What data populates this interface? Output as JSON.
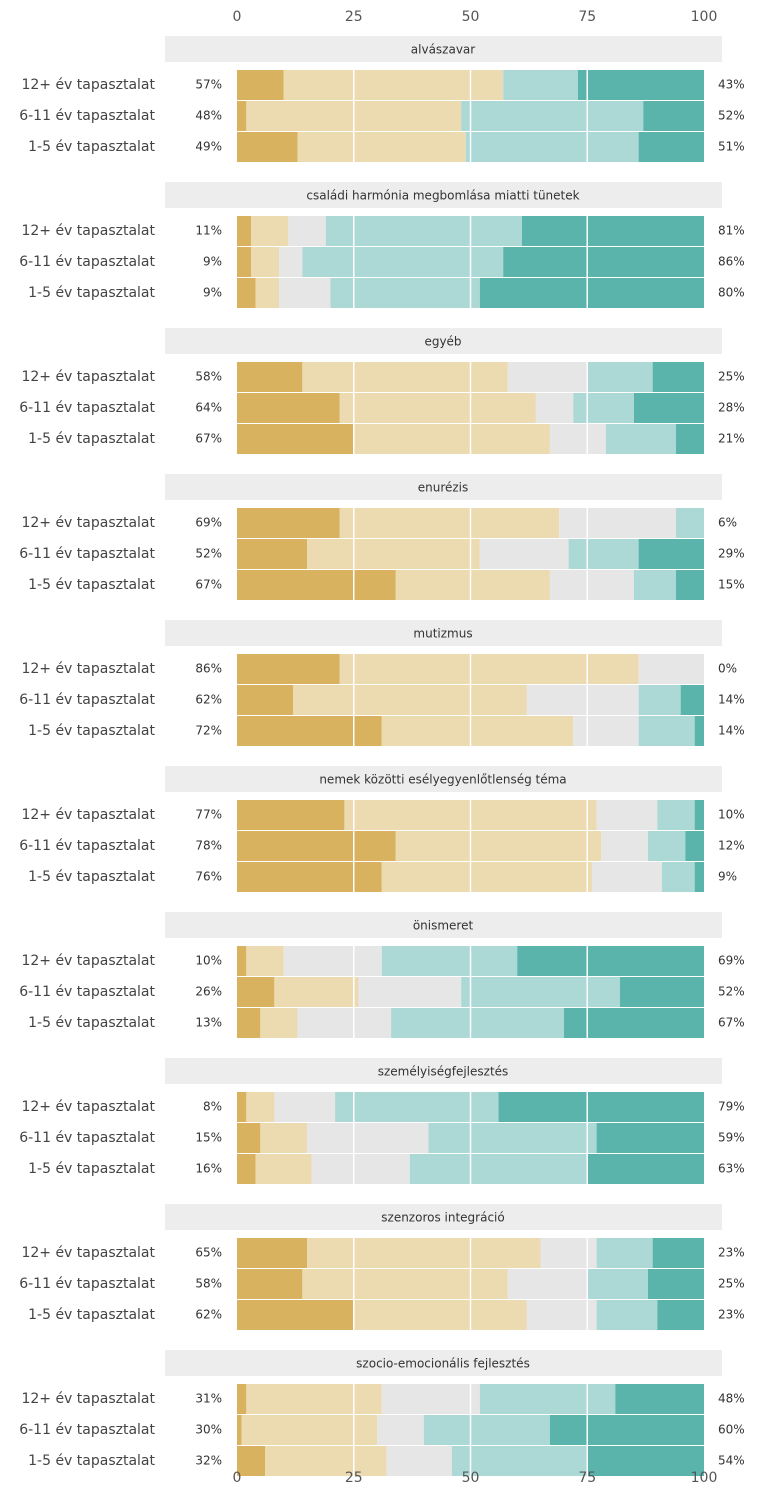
{
  "chart_data": [
    {
      "type": "bar",
      "title": "alvászavar",
      "categories": [
        "12+ év tapasztalat",
        "6-11 év tapasztalat",
        "1-5 év tapasztalat"
      ],
      "xlim": [
        0,
        100
      ],
      "xticks": [
        0,
        25,
        50,
        75,
        100
      ],
      "grid": true,
      "series": [
        {
          "color": "#d9b25f",
          "values": [
            10,
            2,
            13
          ]
        },
        {
          "color": "#ecdab0",
          "values": [
            47,
            46,
            36
          ]
        },
        {
          "color": "#e6e6e6",
          "values": [
            0,
            0,
            0
          ]
        },
        {
          "color": "#acd9d6",
          "values": [
            16,
            39,
            37
          ]
        },
        {
          "color": "#5ab4ac",
          "values": [
            27,
            13,
            14
          ]
        }
      ],
      "left_labels": [
        "57%",
        "48%",
        "49%"
      ],
      "right_labels": [
        "43%",
        "52%",
        "51%"
      ]
    },
    {
      "type": "bar",
      "title": "családi harmónia megbomlása miatti tünetek",
      "categories": [
        "12+ év tapasztalat",
        "6-11 év tapasztalat",
        "1-5 év tapasztalat"
      ],
      "xlim": [
        0,
        100
      ],
      "xticks": [
        0,
        25,
        50,
        75,
        100
      ],
      "grid": true,
      "series": [
        {
          "color": "#d9b25f",
          "values": [
            3,
            3,
            4
          ]
        },
        {
          "color": "#ecdab0",
          "values": [
            8,
            6,
            5
          ]
        },
        {
          "color": "#e6e6e6",
          "values": [
            8,
            5,
            11
          ]
        },
        {
          "color": "#acd9d6",
          "values": [
            42,
            43,
            32
          ]
        },
        {
          "color": "#5ab4ac",
          "values": [
            39,
            43,
            48
          ]
        }
      ],
      "left_labels": [
        "11%",
        "9%",
        "9%"
      ],
      "right_labels": [
        "81%",
        "86%",
        "80%"
      ]
    },
    {
      "type": "bar",
      "title": "egyéb",
      "categories": [
        "12+ év tapasztalat",
        "6-11 év tapasztalat",
        "1-5 év tapasztalat"
      ],
      "xlim": [
        0,
        100
      ],
      "xticks": [
        0,
        25,
        50,
        75,
        100
      ],
      "grid": true,
      "series": [
        {
          "color": "#d9b25f",
          "values": [
            14,
            22,
            25
          ]
        },
        {
          "color": "#ecdab0",
          "values": [
            44,
            42,
            42
          ]
        },
        {
          "color": "#e6e6e6",
          "values": [
            17,
            8,
            12
          ]
        },
        {
          "color": "#acd9d6",
          "values": [
            14,
            13,
            15
          ]
        },
        {
          "color": "#5ab4ac",
          "values": [
            11,
            15,
            6
          ]
        }
      ],
      "left_labels": [
        "58%",
        "64%",
        "67%"
      ],
      "right_labels": [
        "25%",
        "28%",
        "21%"
      ]
    },
    {
      "type": "bar",
      "title": "enurézis",
      "categories": [
        "12+ év tapasztalat",
        "6-11 év tapasztalat",
        "1-5 év tapasztalat"
      ],
      "xlim": [
        0,
        100
      ],
      "xticks": [
        0,
        25,
        50,
        75,
        100
      ],
      "grid": true,
      "series": [
        {
          "color": "#d9b25f",
          "values": [
            22,
            15,
            34
          ]
        },
        {
          "color": "#ecdab0",
          "values": [
            47,
            37,
            33
          ]
        },
        {
          "color": "#e6e6e6",
          "values": [
            25,
            19,
            18
          ]
        },
        {
          "color": "#acd9d6",
          "values": [
            6,
            15,
            9
          ]
        },
        {
          "color": "#5ab4ac",
          "values": [
            0,
            14,
            6
          ]
        }
      ],
      "left_labels": [
        "69%",
        "52%",
        "67%"
      ],
      "right_labels": [
        "6%",
        "29%",
        "15%"
      ]
    },
    {
      "type": "bar",
      "title": "mutizmus",
      "categories": [
        "12+ év tapasztalat",
        "6-11 év tapasztalat",
        "1-5 év tapasztalat"
      ],
      "xlim": [
        0,
        100
      ],
      "xticks": [
        0,
        25,
        50,
        75,
        100
      ],
      "grid": true,
      "series": [
        {
          "color": "#d9b25f",
          "values": [
            22,
            12,
            31
          ]
        },
        {
          "color": "#ecdab0",
          "values": [
            64,
            50,
            41
          ]
        },
        {
          "color": "#e6e6e6",
          "values": [
            14,
            24,
            14
          ]
        },
        {
          "color": "#acd9d6",
          "values": [
            0,
            9,
            12
          ]
        },
        {
          "color": "#5ab4ac",
          "values": [
            0,
            5,
            2
          ]
        }
      ],
      "left_labels": [
        "86%",
        "62%",
        "72%"
      ],
      "right_labels": [
        "0%",
        "14%",
        "14%"
      ]
    },
    {
      "type": "bar",
      "title": "nemek közötti esélyegyenlőtlenség téma",
      "categories": [
        "12+ év tapasztalat",
        "6-11 év tapasztalat",
        "1-5 év tapasztalat"
      ],
      "xlim": [
        0,
        100
      ],
      "xticks": [
        0,
        25,
        50,
        75,
        100
      ],
      "grid": true,
      "series": [
        {
          "color": "#d9b25f",
          "values": [
            23,
            34,
            31
          ]
        },
        {
          "color": "#ecdab0",
          "values": [
            54,
            44,
            45
          ]
        },
        {
          "color": "#e6e6e6",
          "values": [
            13,
            10,
            15
          ]
        },
        {
          "color": "#acd9d6",
          "values": [
            8,
            8,
            7
          ]
        },
        {
          "color": "#5ab4ac",
          "values": [
            2,
            4,
            2
          ]
        }
      ],
      "left_labels": [
        "77%",
        "78%",
        "76%"
      ],
      "right_labels": [
        "10%",
        "12%",
        "9%"
      ]
    },
    {
      "type": "bar",
      "title": "önismeret",
      "categories": [
        "12+ év tapasztalat",
        "6-11 év tapasztalat",
        "1-5 év tapasztalat"
      ],
      "xlim": [
        0,
        100
      ],
      "xticks": [
        0,
        25,
        50,
        75,
        100
      ],
      "grid": true,
      "series": [
        {
          "color": "#d9b25f",
          "values": [
            2,
            8,
            5
          ]
        },
        {
          "color": "#ecdab0",
          "values": [
            8,
            18,
            8
          ]
        },
        {
          "color": "#e6e6e6",
          "values": [
            21,
            22,
            20
          ]
        },
        {
          "color": "#acd9d6",
          "values": [
            29,
            34,
            37
          ]
        },
        {
          "color": "#5ab4ac",
          "values": [
            40,
            18,
            30
          ]
        }
      ],
      "left_labels": [
        "10%",
        "26%",
        "13%"
      ],
      "right_labels": [
        "69%",
        "52%",
        "67%"
      ]
    },
    {
      "type": "bar",
      "title": "személyiségfejlesztés",
      "categories": [
        "12+ év tapasztalat",
        "6-11 év tapasztalat",
        "1-5 év tapasztalat"
      ],
      "xlim": [
        0,
        100
      ],
      "xticks": [
        0,
        25,
        50,
        75,
        100
      ],
      "grid": true,
      "series": [
        {
          "color": "#d9b25f",
          "values": [
            2,
            5,
            4
          ]
        },
        {
          "color": "#ecdab0",
          "values": [
            6,
            10,
            12
          ]
        },
        {
          "color": "#e6e6e6",
          "values": [
            13,
            26,
            21
          ]
        },
        {
          "color": "#acd9d6",
          "values": [
            35,
            36,
            38
          ]
        },
        {
          "color": "#5ab4ac",
          "values": [
            44,
            23,
            25
          ]
        }
      ],
      "left_labels": [
        "8%",
        "15%",
        "16%"
      ],
      "right_labels": [
        "79%",
        "59%",
        "63%"
      ]
    },
    {
      "type": "bar",
      "title": "szenzoros integráció",
      "categories": [
        "12+ év tapasztalat",
        "6-11 év tapasztalat",
        "1-5 év tapasztalat"
      ],
      "xlim": [
        0,
        100
      ],
      "xticks": [
        0,
        25,
        50,
        75,
        100
      ],
      "grid": true,
      "series": [
        {
          "color": "#d9b25f",
          "values": [
            15,
            14,
            25
          ]
        },
        {
          "color": "#ecdab0",
          "values": [
            50,
            44,
            37
          ]
        },
        {
          "color": "#e6e6e6",
          "values": [
            12,
            17,
            15
          ]
        },
        {
          "color": "#acd9d6",
          "values": [
            12,
            13,
            13
          ]
        },
        {
          "color": "#5ab4ac",
          "values": [
            11,
            12,
            10
          ]
        }
      ],
      "left_labels": [
        "65%",
        "58%",
        "62%"
      ],
      "right_labels": [
        "23%",
        "25%",
        "23%"
      ]
    },
    {
      "type": "bar",
      "title": "szocio-emocionális fejlesztés",
      "categories": [
        "12+ év tapasztalat",
        "6-11 év tapasztalat",
        "1-5 év tapasztalat"
      ],
      "xlim": [
        0,
        100
      ],
      "xticks": [
        0,
        25,
        50,
        75,
        100
      ],
      "grid": true,
      "series": [
        {
          "color": "#d9b25f",
          "values": [
            2,
            1,
            6
          ]
        },
        {
          "color": "#ecdab0",
          "values": [
            29,
            29,
            26
          ]
        },
        {
          "color": "#e6e6e6",
          "values": [
            21,
            10,
            14
          ]
        },
        {
          "color": "#acd9d6",
          "values": [
            29,
            27,
            29
          ]
        },
        {
          "color": "#5ab4ac",
          "values": [
            19,
            33,
            25
          ]
        }
      ],
      "left_labels": [
        "31%",
        "30%",
        "32%"
      ],
      "right_labels": [
        "48%",
        "60%",
        "54%"
      ]
    }
  ]
}
